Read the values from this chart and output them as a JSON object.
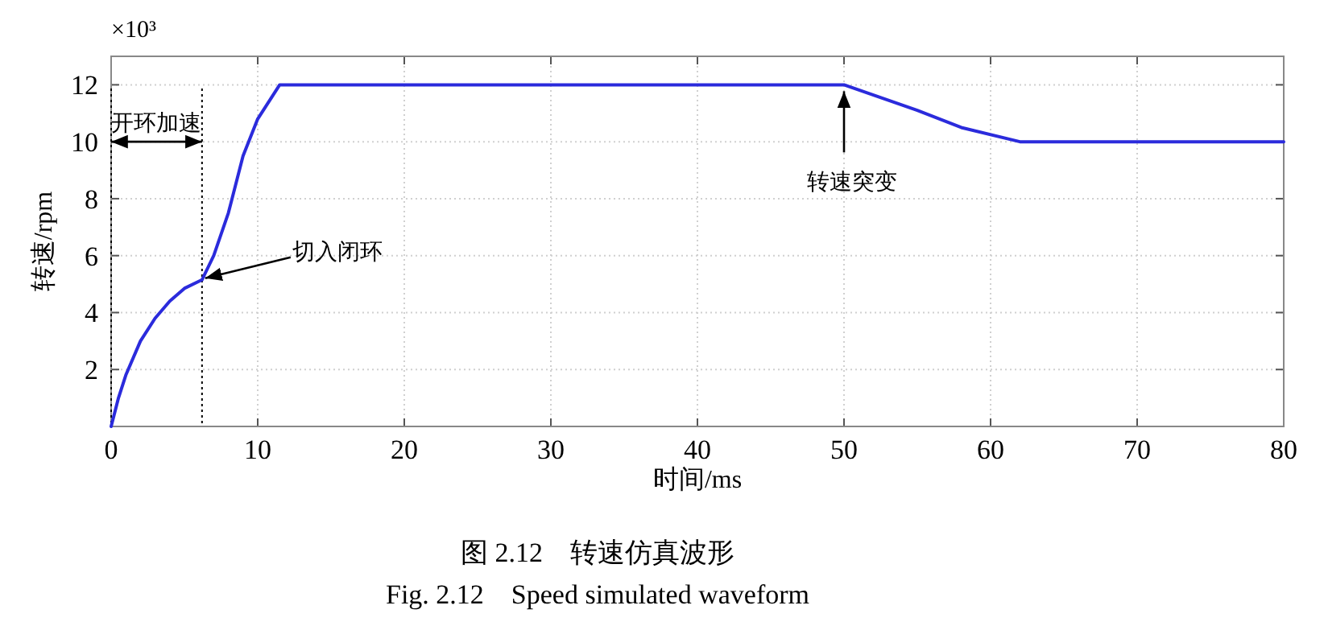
{
  "chart_data": {
    "type": "line",
    "xlabel": "时间/ms",
    "ylabel": "转速/rpm",
    "x": [
      0,
      0.5,
      1,
      2,
      3,
      4,
      5,
      6.2,
      7,
      8,
      9,
      10,
      11.5,
      50,
      55,
      58,
      62,
      80
    ],
    "series": [
      {
        "color": "#2b2bdc",
        "values": [
          0,
          1,
          1.8,
          3,
          3.8,
          4.4,
          4.85,
          5.15,
          6,
          7.5,
          9.5,
          10.8,
          12,
          12,
          11.1,
          10.5,
          10,
          10
        ]
      }
    ],
    "xlim": [
      0,
      80
    ],
    "xticks": [
      0,
      10,
      20,
      30,
      40,
      50,
      60,
      70,
      80
    ],
    "ylim": [
      0,
      13
    ],
    "yticks": [
      2,
      4,
      6,
      8,
      10,
      12
    ],
    "grid": true,
    "marker": "none",
    "line_style": "solid",
    "ref_lines": [
      {
        "axis": "x",
        "value": 0,
        "line_style": "dotted",
        "color": "#000000"
      },
      {
        "axis": "x",
        "value": 6.2,
        "line_style": "dotted",
        "color": "#000000"
      }
    ],
    "annotations": [
      "×10³",
      "开环加速",
      {
        "text": "切入闭环",
        "x": 6.2,
        "y": 5.15
      },
      {
        "text": "转速突变",
        "x": 50,
        "y": 12
      },
      "图 2.12　转速仿真波形",
      "Fig. 2.12　Speed simulated waveform"
    ]
  }
}
